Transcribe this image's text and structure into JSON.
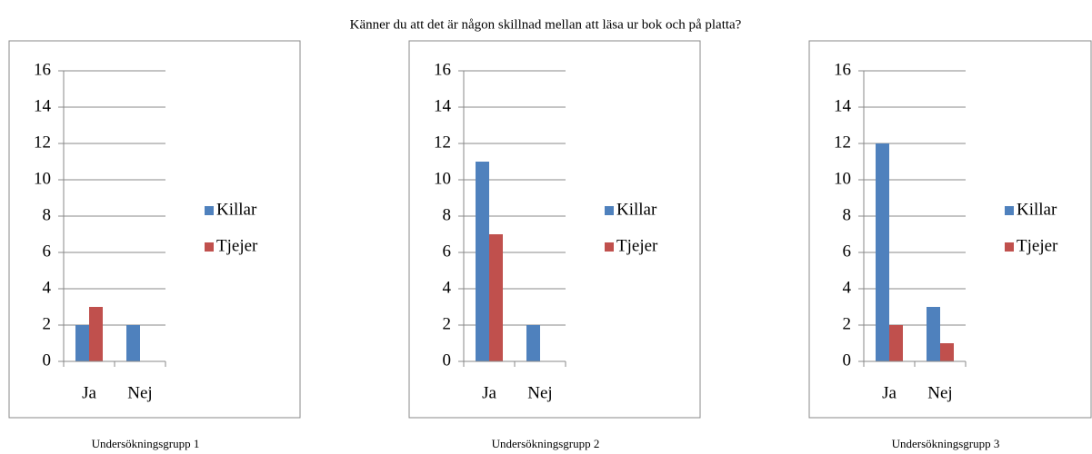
{
  "title": "Känner du att det är någon skillnad mellan att läsa ur bok och på platta?",
  "chart_data": [
    {
      "type": "bar",
      "caption": "Undersökningsgrupp 1",
      "categories": [
        "Ja",
        "Nej"
      ],
      "series": [
        {
          "name": "Killar",
          "color": "#4f81bd",
          "values": [
            2,
            2
          ]
        },
        {
          "name": "Tjejer",
          "color": "#c0504d",
          "values": [
            3,
            0
          ]
        }
      ],
      "ylim": [
        0,
        16
      ],
      "yticks": [
        0,
        2,
        4,
        6,
        8,
        10,
        12,
        14,
        16
      ],
      "grid": true,
      "legend": "right"
    },
    {
      "type": "bar",
      "caption": "Undersökningsgrupp 2",
      "categories": [
        "Ja",
        "Nej"
      ],
      "series": [
        {
          "name": "Killar",
          "color": "#4f81bd",
          "values": [
            11,
            2
          ]
        },
        {
          "name": "Tjejer",
          "color": "#c0504d",
          "values": [
            7,
            0
          ]
        }
      ],
      "ylim": [
        0,
        16
      ],
      "yticks": [
        0,
        2,
        4,
        6,
        8,
        10,
        12,
        14,
        16
      ],
      "grid": true,
      "legend": "right"
    },
    {
      "type": "bar",
      "caption": "Undersökningsgrupp 3",
      "categories": [
        "Ja",
        "Nej"
      ],
      "series": [
        {
          "name": "Killar",
          "color": "#4f81bd",
          "values": [
            12,
            3
          ]
        },
        {
          "name": "Tjejer",
          "color": "#c0504d",
          "values": [
            2,
            1
          ]
        }
      ],
      "ylim": [
        0,
        16
      ],
      "yticks": [
        0,
        2,
        4,
        6,
        8,
        10,
        12,
        14,
        16
      ],
      "grid": true,
      "legend": "right"
    }
  ]
}
